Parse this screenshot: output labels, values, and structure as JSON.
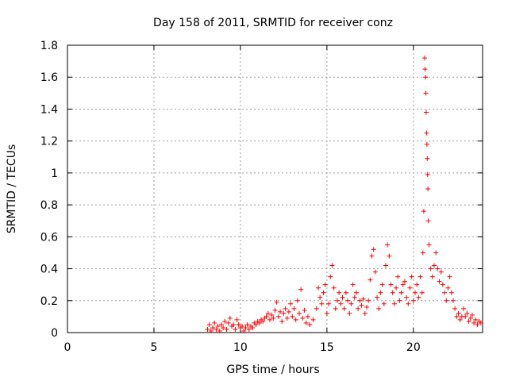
{
  "chart_data": {
    "type": "scatter",
    "title": "Day 158 of 2011, SRMTID for receiver conz",
    "xlabel": "GPS time / hours",
    "ylabel": "SRMTID / TECUs",
    "xlim": [
      0,
      24
    ],
    "ylim": [
      0,
      1.8
    ],
    "xticks": [
      0,
      5,
      10,
      15,
      20
    ],
    "xtick_labels": [
      "0",
      "5",
      "10",
      "15",
      "20"
    ],
    "yticks": [
      0,
      0.2,
      0.4,
      0.6,
      0.8,
      1,
      1.2,
      1.4,
      1.6,
      1.8
    ],
    "ytick_labels": [
      "0",
      "0.2",
      "0.4",
      "0.6",
      "0.8",
      "1",
      "1.2",
      "1.4",
      "1.6",
      "1.8"
    ],
    "grid": true,
    "marker": "+",
    "series_color": "#ff0000",
    "series": [
      {
        "name": "SRMTID",
        "points": [
          [
            8.1,
            0.02
          ],
          [
            8.2,
            0.05
          ],
          [
            8.3,
            0.01
          ],
          [
            8.4,
            0.03
          ],
          [
            8.5,
            0.06
          ],
          [
            8.6,
            0.02
          ],
          [
            8.7,
            0.04
          ],
          [
            8.8,
            0.01
          ],
          [
            8.9,
            0.05
          ],
          [
            9.0,
            0.03
          ],
          [
            9.1,
            0.07
          ],
          [
            9.2,
            0.02
          ],
          [
            9.3,
            0.06
          ],
          [
            9.4,
            0.09
          ],
          [
            9.5,
            0.04
          ],
          [
            9.6,
            0.05
          ],
          [
            9.7,
            0.02
          ],
          [
            9.8,
            0.08
          ],
          [
            9.9,
            0.05
          ],
          [
            10.0,
            0.03
          ],
          [
            10.1,
            0.04
          ],
          [
            10.2,
            0.01
          ],
          [
            10.3,
            0.03
          ],
          [
            10.4,
            0.05
          ],
          [
            10.5,
            0.02
          ],
          [
            10.6,
            0.04
          ],
          [
            10.7,
            0.03
          ],
          [
            10.8,
            0.06
          ],
          [
            10.9,
            0.05
          ],
          [
            11.0,
            0.07
          ],
          [
            11.1,
            0.06
          ],
          [
            11.2,
            0.08
          ],
          [
            11.3,
            0.07
          ],
          [
            11.4,
            0.09
          ],
          [
            11.5,
            0.1
          ],
          [
            11.6,
            0.12
          ],
          [
            11.7,
            0.08
          ],
          [
            11.8,
            0.11
          ],
          [
            11.9,
            0.09
          ],
          [
            12.0,
            0.14
          ],
          [
            12.1,
            0.19
          ],
          [
            12.2,
            0.1
          ],
          [
            12.3,
            0.13
          ],
          [
            12.4,
            0.07
          ],
          [
            12.5,
            0.12
          ],
          [
            12.6,
            0.15
          ],
          [
            12.7,
            0.09
          ],
          [
            12.8,
            0.13
          ],
          [
            12.9,
            0.18
          ],
          [
            13.0,
            0.1
          ],
          [
            13.1,
            0.15
          ],
          [
            13.2,
            0.08
          ],
          [
            13.3,
            0.2
          ],
          [
            13.4,
            0.12
          ],
          [
            13.5,
            0.27
          ],
          [
            13.6,
            0.09
          ],
          [
            13.7,
            0.14
          ],
          [
            13.8,
            0.06
          ],
          [
            13.9,
            0.1
          ],
          [
            14.0,
            0.05
          ],
          [
            14.2,
            0.08
          ],
          [
            14.4,
            0.15
          ],
          [
            14.5,
            0.28
          ],
          [
            14.6,
            0.22
          ],
          [
            14.7,
            0.18
          ],
          [
            14.8,
            0.25
          ],
          [
            14.9,
            0.3
          ],
          [
            15.0,
            0.12
          ],
          [
            15.1,
            0.18
          ],
          [
            15.2,
            0.35
          ],
          [
            15.3,
            0.42
          ],
          [
            15.4,
            0.28
          ],
          [
            15.5,
            0.15
          ],
          [
            15.6,
            0.2
          ],
          [
            15.7,
            0.25
          ],
          [
            15.8,
            0.18
          ],
          [
            15.9,
            0.22
          ],
          [
            16.0,
            0.15
          ],
          [
            16.1,
            0.25
          ],
          [
            16.2,
            0.2
          ],
          [
            16.3,
            0.12
          ],
          [
            16.4,
            0.18
          ],
          [
            16.5,
            0.3
          ],
          [
            16.6,
            0.22
          ],
          [
            16.7,
            0.25
          ],
          [
            16.8,
            0.15
          ],
          [
            16.9,
            0.2
          ],
          [
            17.0,
            0.17
          ],
          [
            17.1,
            0.21
          ],
          [
            17.2,
            0.12
          ],
          [
            17.3,
            0.16
          ],
          [
            17.4,
            0.2
          ],
          [
            17.5,
            0.33
          ],
          [
            17.6,
            0.48
          ],
          [
            17.7,
            0.52
          ],
          [
            17.8,
            0.38
          ],
          [
            17.9,
            0.22
          ],
          [
            18.0,
            0.15
          ],
          [
            18.1,
            0.25
          ],
          [
            18.2,
            0.3
          ],
          [
            18.3,
            0.18
          ],
          [
            18.4,
            0.42
          ],
          [
            18.5,
            0.55
          ],
          [
            18.6,
            0.48
          ],
          [
            18.7,
            0.3
          ],
          [
            18.8,
            0.25
          ],
          [
            18.9,
            0.18
          ],
          [
            19.0,
            0.28
          ],
          [
            19.1,
            0.35
          ],
          [
            19.2,
            0.2
          ],
          [
            19.3,
            0.25
          ],
          [
            19.4,
            0.3
          ],
          [
            19.5,
            0.32
          ],
          [
            19.6,
            0.22
          ],
          [
            19.7,
            0.18
          ],
          [
            19.8,
            0.28
          ],
          [
            19.9,
            0.35
          ],
          [
            20.0,
            0.2
          ],
          [
            20.1,
            0.25
          ],
          [
            20.2,
            0.3
          ],
          [
            20.3,
            0.22
          ],
          [
            20.4,
            0.35
          ],
          [
            20.5,
            0.25
          ],
          [
            20.55,
            0.5
          ],
          [
            20.6,
            0.76
          ],
          [
            20.65,
            1.72
          ],
          [
            20.67,
            1.65
          ],
          [
            20.7,
            1.6
          ],
          [
            20.72,
            1.5
          ],
          [
            20.74,
            1.38
          ],
          [
            20.76,
            1.25
          ],
          [
            20.78,
            1.18
          ],
          [
            20.8,
            1.09
          ],
          [
            20.82,
            0.99
          ],
          [
            20.84,
            0.9
          ],
          [
            20.86,
            0.7
          ],
          [
            20.9,
            0.55
          ],
          [
            21.0,
            0.4
          ],
          [
            21.1,
            0.35
          ],
          [
            21.2,
            0.42
          ],
          [
            21.3,
            0.5
          ],
          [
            21.4,
            0.4
          ],
          [
            21.5,
            0.32
          ],
          [
            21.6,
            0.38
          ],
          [
            21.7,
            0.3
          ],
          [
            21.8,
            0.25
          ],
          [
            21.9,
            0.2
          ],
          [
            22.0,
            0.28
          ],
          [
            22.1,
            0.35
          ],
          [
            22.2,
            0.25
          ],
          [
            22.3,
            0.2
          ],
          [
            22.4,
            0.15
          ],
          [
            22.5,
            0.1
          ],
          [
            22.6,
            0.12
          ],
          [
            22.7,
            0.08
          ],
          [
            22.8,
            0.1
          ],
          [
            22.9,
            0.15
          ],
          [
            23.0,
            0.1
          ],
          [
            23.1,
            0.12
          ],
          [
            23.2,
            0.07
          ],
          [
            23.3,
            0.09
          ],
          [
            23.4,
            0.11
          ],
          [
            23.5,
            0.06
          ],
          [
            23.6,
            0.08
          ],
          [
            23.7,
            0.05
          ],
          [
            23.8,
            0.07
          ],
          [
            23.9,
            0.06
          ]
        ]
      }
    ]
  }
}
